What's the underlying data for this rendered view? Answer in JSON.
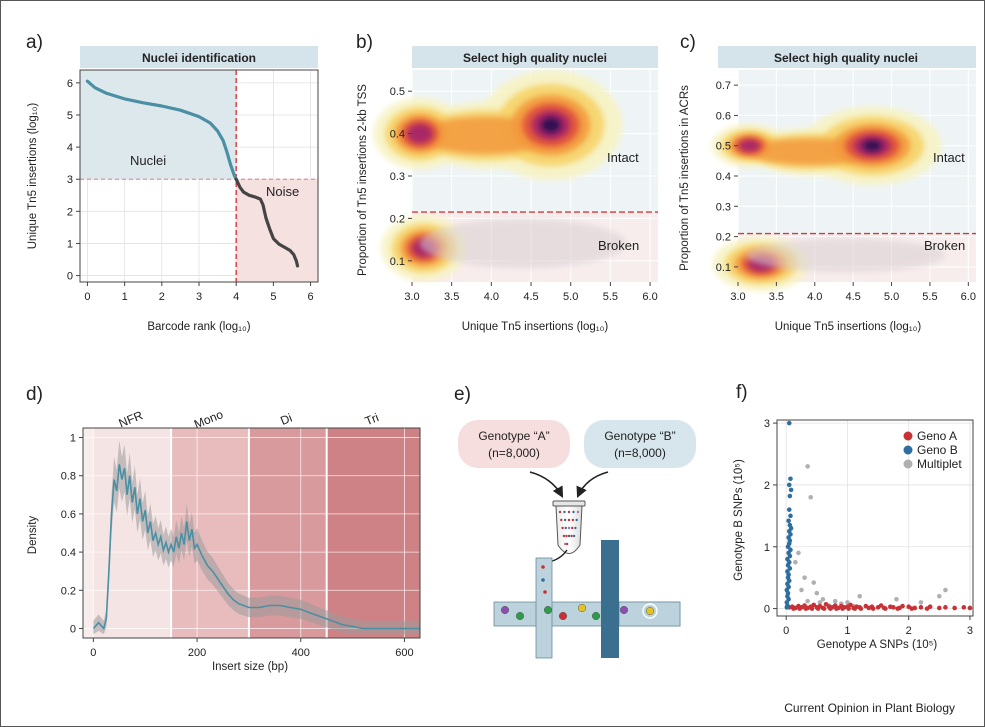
{
  "figure": {
    "credit": "Current Opinion in Plant Biology",
    "colors": {
      "teal": "#4a8fa3",
      "dark": "#444444",
      "red_dash": "#d23a3a",
      "strip_bg": "#d5e3ea",
      "nuclei_bg": "#d9e6ec",
      "noise_bg": "#f3dcdc",
      "geno_a": "#c83236",
      "geno_b": "#2f6f9f",
      "multiplet": "#b0b0b0"
    }
  },
  "chart_data": [
    {
      "panel": "a",
      "type": "line",
      "panel_label": "a)",
      "title": "Nuclei identification",
      "xlabel": "Barcode rank (log₁₀)",
      "ylabel": "Unique Tn5 insertions (log₁₀)",
      "xlim": [
        -0.2,
        6.2
      ],
      "ylim": [
        -0.2,
        6.4
      ],
      "xticks": [
        0,
        1,
        2,
        3,
        4,
        5,
        6
      ],
      "yticks": [
        0,
        1,
        2,
        3,
        4,
        5,
        6
      ],
      "grid": true,
      "threshold_x": 4,
      "threshold_y": 3,
      "regions": [
        {
          "label": "Nuclei",
          "x": [
            0,
            4
          ],
          "y": [
            3,
            6.4
          ],
          "color": "#4a8fa3"
        },
        {
          "label": "Noise",
          "x": [
            4,
            6.2
          ],
          "y": [
            -0.2,
            3
          ],
          "color": "#b03030"
        }
      ],
      "series": [
        {
          "segment": "nuclei",
          "color": "#4a8fa3",
          "x": [
            0,
            0.2,
            0.5,
            1.0,
            1.5,
            2.0,
            2.5,
            3.0,
            3.3,
            3.5,
            3.65,
            3.75,
            3.85,
            3.95,
            4.0
          ],
          "y": [
            6.05,
            5.85,
            5.68,
            5.5,
            5.38,
            5.28,
            5.15,
            4.95,
            4.75,
            4.5,
            4.2,
            3.85,
            3.45,
            3.12,
            3.0
          ]
        },
        {
          "segment": "noise",
          "color": "#444444",
          "x": [
            4.0,
            4.1,
            4.2,
            4.35,
            4.5,
            4.65,
            4.72,
            4.8,
            4.9,
            5.0,
            5.15,
            5.3,
            5.45,
            5.55,
            5.62,
            5.65
          ],
          "y": [
            3.0,
            2.75,
            2.6,
            2.5,
            2.45,
            2.38,
            2.2,
            1.8,
            1.45,
            1.15,
            0.98,
            0.88,
            0.78,
            0.65,
            0.45,
            0.3
          ]
        }
      ]
    },
    {
      "panel": "b",
      "type": "heatmap",
      "panel_label": "b)",
      "title": "Select high quality nuclei",
      "xlabel": "Unique Tn5 insertions (log₁₀)",
      "ylabel": "Proportion of Tn5 insertions 2-kb TSS",
      "xlim": [
        3.0,
        6.1
      ],
      "ylim": [
        0.05,
        0.55
      ],
      "xticks": [
        3.0,
        3.5,
        4.0,
        4.5,
        5.0,
        5.5,
        6.0
      ],
      "yticks": [
        0.1,
        0.2,
        0.3,
        0.4,
        0.5
      ],
      "threshold_y": 0.215,
      "grid": true,
      "regions": [
        {
          "label": "Intact",
          "color": "#4a8fa3"
        },
        {
          "label": "Broken",
          "color": "#b03030"
        }
      ],
      "density_peaks": [
        {
          "x": 4.75,
          "y": 0.42,
          "weight": 1.0
        },
        {
          "x": 3.1,
          "y": 0.4,
          "weight": 0.65
        },
        {
          "x": 3.15,
          "y": 0.13,
          "weight": 0.6
        }
      ]
    },
    {
      "panel": "c",
      "type": "heatmap",
      "panel_label": "c)",
      "title": "Select high quality nuclei",
      "xlabel": "Unique Tn5 insertions (log₁₀)",
      "ylabel": "Proportion of Tn5 insertions in ACRs",
      "xlim": [
        3.0,
        6.1
      ],
      "ylim": [
        0.05,
        0.75
      ],
      "xticks": [
        3.0,
        3.5,
        4.0,
        4.5,
        5.0,
        5.5,
        6.0
      ],
      "yticks": [
        0.1,
        0.2,
        0.3,
        0.4,
        0.5,
        0.6,
        0.7
      ],
      "threshold_y": 0.21,
      "grid": true,
      "regions": [
        {
          "label": "Intact",
          "color": "#4a8fa3"
        },
        {
          "label": "Broken",
          "color": "#b03030"
        }
      ],
      "density_peaks": [
        {
          "x": 4.75,
          "y": 0.5,
          "weight": 1.0
        },
        {
          "x": 3.15,
          "y": 0.5,
          "weight": 0.55
        },
        {
          "x": 3.3,
          "y": 0.11,
          "weight": 0.7
        }
      ]
    },
    {
      "panel": "d",
      "type": "line",
      "panel_label": "d)",
      "xlabel": "Insert size (bp)",
      "ylabel": "Density",
      "xlim": [
        -20,
        630
      ],
      "ylim": [
        -0.05,
        1.05
      ],
      "xticks": [
        0,
        200,
        400,
        600
      ],
      "yticks": [
        0,
        0.2,
        0.4,
        0.6,
        0.8,
        1
      ],
      "grid": true,
      "bands": [
        {
          "label": "NFR",
          "from": 0,
          "to": 150,
          "color": "#f5e4e4"
        },
        {
          "label": "Mono",
          "from": 150,
          "to": 300,
          "color": "#e8bcbd"
        },
        {
          "label": "Di",
          "from": 300,
          "to": 450,
          "color": "#d99a9d"
        },
        {
          "label": "Tri",
          "from": 450,
          "to": 630,
          "color": "#cf8286"
        }
      ],
      "series": [
        {
          "name": "density",
          "color": "#4a8fa3",
          "x": [
            0,
            10,
            20,
            25,
            30,
            35,
            40,
            45,
            50,
            55,
            60,
            65,
            70,
            75,
            80,
            85,
            90,
            95,
            100,
            105,
            110,
            115,
            120,
            125,
            130,
            135,
            140,
            145,
            150,
            155,
            160,
            165,
            170,
            175,
            180,
            185,
            190,
            195,
            200,
            210,
            220,
            230,
            240,
            250,
            260,
            270,
            280,
            290,
            300,
            320,
            340,
            360,
            380,
            400,
            420,
            440,
            460,
            480,
            500,
            520,
            560,
            600,
            630
          ],
          "y": [
            0.0,
            0.03,
            0.0,
            0.05,
            0.3,
            0.6,
            0.78,
            0.72,
            0.86,
            0.78,
            0.84,
            0.7,
            0.8,
            0.66,
            0.74,
            0.6,
            0.68,
            0.56,
            0.62,
            0.5,
            0.56,
            0.46,
            0.5,
            0.44,
            0.48,
            0.41,
            0.45,
            0.4,
            0.44,
            0.4,
            0.48,
            0.42,
            0.5,
            0.44,
            0.56,
            0.46,
            0.52,
            0.42,
            0.44,
            0.38,
            0.33,
            0.3,
            0.26,
            0.22,
            0.18,
            0.15,
            0.13,
            0.12,
            0.11,
            0.11,
            0.12,
            0.12,
            0.11,
            0.1,
            0.08,
            0.06,
            0.04,
            0.02,
            0.01,
            0.0,
            0.0,
            0.0,
            0.0
          ]
        }
      ]
    },
    {
      "panel": "f",
      "type": "scatter",
      "panel_label": "f)",
      "xlabel": "Genotype A SNPs (10⁵)",
      "ylabel": "Genotype B SNPs (10⁵)",
      "xlim": [
        -0.15,
        3.05
      ],
      "ylim": [
        -0.12,
        3.05
      ],
      "xticks": [
        0,
        1,
        2,
        3
      ],
      "yticks": [
        0,
        1,
        2,
        3
      ],
      "grid": true,
      "legend": "top-right",
      "series": [
        {
          "name": "Geno A",
          "color": "#c83236",
          "points": [
            [
              0.05,
              0.02
            ],
            [
              0.1,
              0.03
            ],
            [
              0.15,
              0.01
            ],
            [
              0.2,
              0.04
            ],
            [
              0.25,
              0.02
            ],
            [
              0.3,
              0.05
            ],
            [
              0.35,
              0.01
            ],
            [
              0.4,
              0.03
            ],
            [
              0.45,
              0.06
            ],
            [
              0.5,
              0.02
            ],
            [
              0.55,
              0.04
            ],
            [
              0.6,
              0.01
            ],
            [
              0.65,
              0.07
            ],
            [
              0.7,
              0.03
            ],
            [
              0.75,
              0.02
            ],
            [
              0.8,
              0.05
            ],
            [
              0.85,
              0.01
            ],
            [
              0.9,
              0.04
            ],
            [
              0.95,
              0.02
            ],
            [
              1.0,
              0.03
            ],
            [
              1.05,
              0.06
            ],
            [
              1.1,
              0.01
            ],
            [
              1.15,
              0.03
            ],
            [
              1.2,
              0.02
            ],
            [
              1.3,
              0.04
            ],
            [
              1.35,
              0.01
            ],
            [
              1.4,
              0.03
            ],
            [
              1.5,
              0.02
            ],
            [
              1.55,
              0.05
            ],
            [
              1.6,
              0.01
            ],
            [
              1.7,
              0.03
            ],
            [
              1.75,
              0.02
            ],
            [
              1.85,
              0.01
            ],
            [
              1.9,
              0.04
            ],
            [
              2.0,
              0.03
            ],
            [
              2.1,
              0.01
            ],
            [
              2.2,
              0.02
            ],
            [
              2.35,
              0.03
            ],
            [
              2.5,
              0.01
            ],
            [
              2.6,
              0.02
            ],
            [
              2.75,
              0.01
            ],
            [
              2.9,
              0.02
            ],
            [
              3.0,
              0.01
            ],
            [
              0.12,
              0.0
            ],
            [
              0.22,
              0.0
            ],
            [
              0.32,
              0.0
            ],
            [
              0.42,
              0.0
            ],
            [
              0.52,
              0.0
            ],
            [
              0.62,
              0.0
            ],
            [
              0.72,
              0.0
            ],
            [
              0.82,
              0.0
            ],
            [
              0.92,
              0.0
            ],
            [
              1.02,
              0.0
            ],
            [
              1.12,
              0.0
            ],
            [
              1.22,
              0.0
            ],
            [
              1.42,
              0.0
            ],
            [
              1.62,
              0.0
            ],
            [
              1.82,
              0.0
            ],
            [
              2.05,
              0.0
            ],
            [
              2.3,
              0.0
            ]
          ]
        },
        {
          "name": "Geno B",
          "color": "#2f6f9f",
          "points": [
            [
              0.05,
              3.0
            ],
            [
              0.07,
              2.1
            ],
            [
              0.05,
              2.0
            ],
            [
              0.08,
              1.92
            ],
            [
              0.06,
              1.82
            ],
            [
              0.05,
              1.6
            ],
            [
              0.07,
              1.5
            ],
            [
              0.04,
              1.42
            ],
            [
              0.06,
              1.35
            ],
            [
              0.08,
              1.3
            ],
            [
              0.05,
              1.25
            ],
            [
              0.07,
              1.2
            ],
            [
              0.04,
              1.15
            ],
            [
              0.06,
              1.1
            ],
            [
              0.05,
              1.05
            ],
            [
              0.03,
              1.0
            ],
            [
              0.07,
              0.95
            ],
            [
              0.04,
              0.9
            ],
            [
              0.06,
              0.85
            ],
            [
              0.02,
              0.8
            ],
            [
              0.05,
              0.75
            ],
            [
              0.03,
              0.7
            ],
            [
              0.06,
              0.65
            ],
            [
              0.02,
              0.6
            ],
            [
              0.04,
              0.55
            ],
            [
              0.03,
              0.5
            ],
            [
              0.05,
              0.45
            ],
            [
              0.02,
              0.4
            ],
            [
              0.04,
              0.35
            ],
            [
              0.01,
              0.3
            ],
            [
              0.03,
              0.25
            ],
            [
              0.02,
              0.2
            ],
            [
              0.04,
              0.15
            ],
            [
              0.01,
              0.1
            ],
            [
              0.02,
              0.05
            ],
            [
              0.01,
              0.02
            ]
          ]
        },
        {
          "name": "Multiplet",
          "color": "#b0b0b0",
          "points": [
            [
              0.35,
              2.3
            ],
            [
              0.4,
              1.8
            ],
            [
              0.2,
              0.9
            ],
            [
              0.15,
              0.75
            ],
            [
              0.3,
              0.5
            ],
            [
              0.25,
              0.3
            ],
            [
              0.45,
              0.42
            ],
            [
              0.5,
              0.25
            ],
            [
              0.6,
              0.15
            ],
            [
              0.8,
              0.12
            ],
            [
              0.35,
              0.12
            ],
            [
              0.9,
              0.08
            ],
            [
              1.0,
              0.1
            ],
            [
              1.2,
              0.2
            ],
            [
              1.8,
              0.15
            ],
            [
              2.2,
              0.1
            ],
            [
              2.6,
              0.3
            ],
            [
              2.5,
              0.2
            ],
            [
              0.55,
              0.1
            ],
            [
              0.7,
              0.05
            ],
            [
              1.1,
              0.04
            ]
          ]
        }
      ]
    }
  ],
  "panel_e": {
    "label": "e)",
    "genotype_a_name": "Genotype “A”",
    "genotype_a_count": "(n=8,000)",
    "genotype_b_name": "Genotype “B”",
    "genotype_b_count": "(n=8,000)"
  }
}
